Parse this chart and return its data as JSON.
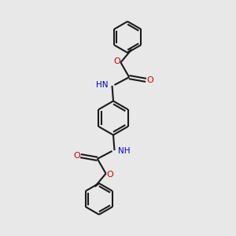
{
  "bg_color": "#e8e8e8",
  "bond_color": "#1a1a1a",
  "N_color": "#0000cc",
  "O_color": "#cc0000",
  "lw": 1.5,
  "fig_size": [
    3.0,
    3.0
  ],
  "dpi": 100,
  "xlim": [
    0.0,
    1.0
  ],
  "ylim": [
    0.0,
    1.0
  ]
}
